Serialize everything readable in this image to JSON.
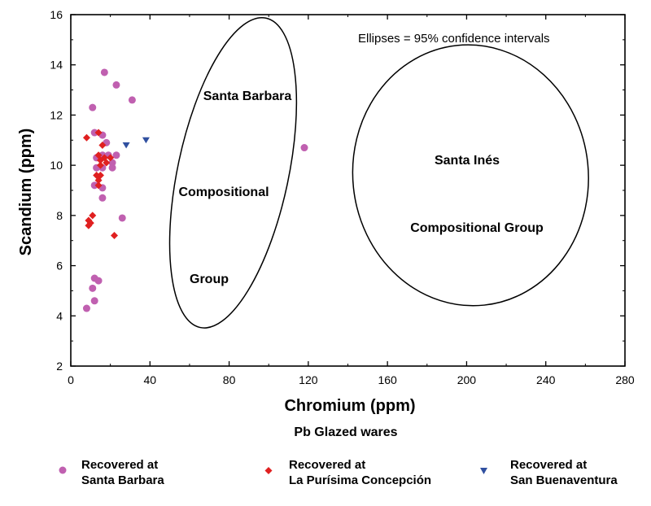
{
  "chart_data": {
    "type": "scatter",
    "title": "",
    "subtitle": "Pb Glazed wares",
    "xlabel": "Chromium (ppm)",
    "ylabel": "Scandium (ppm)",
    "xlim": [
      0,
      280
    ],
    "ylim": [
      2,
      16
    ],
    "xticks": [
      "0",
      "40",
      "80",
      "120",
      "160",
      "200",
      "240",
      "280"
    ],
    "yticks": [
      "2",
      "4",
      "6",
      "8",
      "10",
      "12",
      "14",
      "16"
    ],
    "annotation": "Ellipses = 95% confidence intervals",
    "group_labels": {
      "santa_barbara": [
        "Santa Barbara",
        "Compositional",
        "Group"
      ],
      "santa_ines": [
        "Santa Inés",
        "Compositional Group"
      ]
    },
    "ellipses": [
      {
        "name": "Santa Barbara Compositional Group",
        "cx": 82,
        "cy": 9.7,
        "rx": 28,
        "ry": 6.3,
        "angle_deg": 12
      },
      {
        "name": "Santa Inés Compositional Group",
        "cx": 202,
        "cy": 9.6,
        "rx": 59.5,
        "ry": 5.2,
        "angle_deg": -6
      }
    ],
    "series": [
      {
        "name": "Recovered at Santa Barbara",
        "marker": "circle",
        "color": "#c060b0",
        "points": [
          [
            17,
            13.7
          ],
          [
            23,
            13.2
          ],
          [
            31,
            12.6
          ],
          [
            11,
            12.3
          ],
          [
            12,
            11.3
          ],
          [
            16,
            11.2
          ],
          [
            18,
            10.9
          ],
          [
            118,
            10.7
          ],
          [
            16,
            10.4
          ],
          [
            19,
            10.4
          ],
          [
            23,
            10.4
          ],
          [
            13,
            10.3
          ],
          [
            21,
            10.1
          ],
          [
            13,
            9.9
          ],
          [
            16,
            9.9
          ],
          [
            21,
            9.9
          ],
          [
            12,
            9.2
          ],
          [
            16,
            9.1
          ],
          [
            16,
            8.7
          ],
          [
            26,
            7.9
          ],
          [
            12,
            5.5
          ],
          [
            14,
            5.4
          ],
          [
            11,
            5.1
          ],
          [
            12,
            4.6
          ],
          [
            8,
            4.3
          ]
        ]
      },
      {
        "name": "Recovered at La Purísima Concepción",
        "marker": "diamond",
        "color": "#e02020",
        "points": [
          [
            8,
            11.1
          ],
          [
            14,
            11.3
          ],
          [
            16,
            10.8
          ],
          [
            14,
            10.4
          ],
          [
            17,
            10.3
          ],
          [
            20,
            10.3
          ],
          [
            15,
            10.2
          ],
          [
            15,
            10.0
          ],
          [
            18,
            10.1
          ],
          [
            15,
            9.6
          ],
          [
            13,
            9.6
          ],
          [
            14,
            9.4
          ],
          [
            14,
            9.2
          ],
          [
            11,
            8.0
          ],
          [
            9,
            7.8
          ],
          [
            10,
            7.7
          ],
          [
            9,
            7.6
          ],
          [
            22,
            7.2
          ]
        ]
      },
      {
        "name": "Recovered at San Buenaventura",
        "marker": "triangle-down",
        "color": "#3050a0",
        "points": [
          [
            28,
            10.8
          ],
          [
            38,
            11.0
          ]
        ]
      }
    ],
    "legend": [
      {
        "line1": "Recovered at",
        "line2": "Santa Barbara"
      },
      {
        "line1": "Recovered at",
        "line2": "La Purísima Concepción"
      },
      {
        "line1": "Recovered at",
        "line2": "San Buenaventura"
      }
    ]
  }
}
